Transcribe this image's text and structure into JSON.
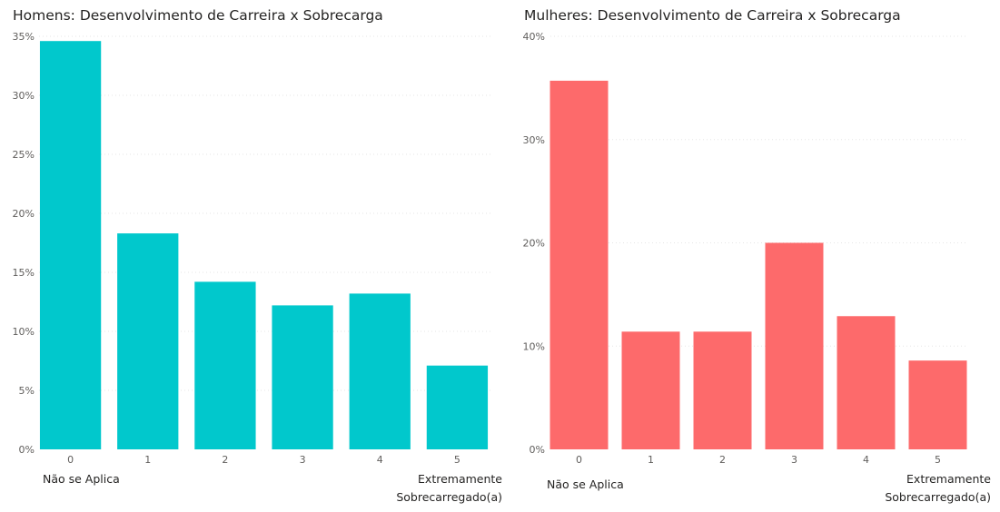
{
  "chart_data": [
    {
      "type": "bar",
      "title": "Homens: Desenvolvimento de Carreira x Sobrecarga",
      "categories": [
        "0",
        "1",
        "2",
        "3",
        "4",
        "5"
      ],
      "values": [
        0.346,
        0.183,
        0.142,
        0.122,
        0.132,
        0.071
      ],
      "ylim": [
        0,
        0.35
      ],
      "yticks": [
        "0%",
        "5%",
        "10%",
        "15%",
        "20%",
        "25%",
        "30%",
        "35%"
      ],
      "color": "#01C8CC",
      "grid": true,
      "x_low_label": "Não se Aplica",
      "x_high_label": [
        "Extremamente",
        "Sobrecarregado(a)"
      ]
    },
    {
      "type": "bar",
      "title": "Mulheres: Desenvolvimento de Carreira x Sobrecarga",
      "categories": [
        "0",
        "1",
        "2",
        "3",
        "4",
        "5"
      ],
      "values": [
        0.357,
        0.114,
        0.114,
        0.2,
        0.129,
        0.086
      ],
      "ylim": [
        0,
        0.4
      ],
      "yticks": [
        "0%",
        "10%",
        "20%",
        "30%",
        "40%"
      ],
      "color": "#FD6A6B",
      "grid": true,
      "x_low_label": "Não se Aplica",
      "x_high_label": [
        "Extremamente",
        "Sobrecarregado(a)"
      ]
    }
  ]
}
